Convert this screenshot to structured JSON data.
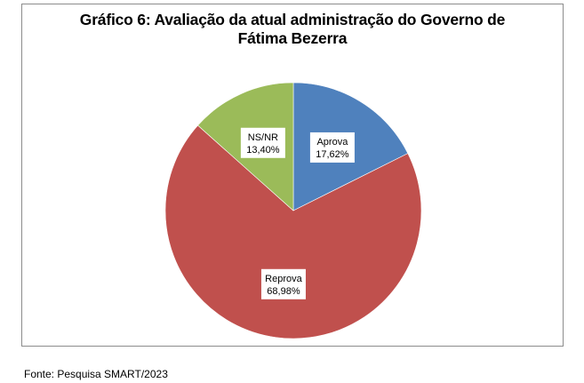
{
  "chart_data": {
    "type": "pie",
    "title_lines": [
      "Gráfico 6: Avaliação da atual administração do Governo de",
      "Fátima Bezerra"
    ],
    "slices": [
      {
        "label": "Aprova",
        "value": 17.62,
        "value_label": "17,62%",
        "color": "#4f81bd"
      },
      {
        "label": "Reprova",
        "value": 68.98,
        "value_label": "68,98%",
        "color": "#c0504d"
      },
      {
        "label": "NS/NR",
        "value": 13.4,
        "value_label": "13,40%",
        "color": "#9bbb59"
      }
    ],
    "start_angle_deg": 0,
    "direction": "clockwise",
    "legend": "none"
  },
  "source": "Fonte: Pesquisa SMART/2023"
}
